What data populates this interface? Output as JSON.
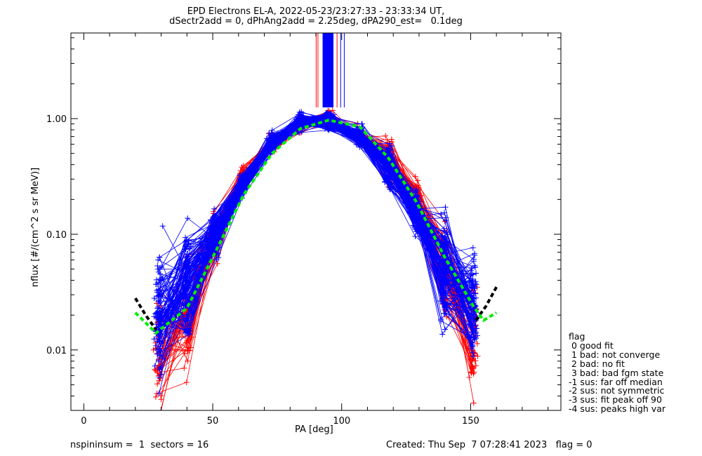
{
  "title": {
    "line1": "EPD Electrons EL-A, 2022-05-23/23:27:33 - 23:33:34 UT,",
    "line2": "dSectr2add = 0, dPhAng2add = 2.25deg, dPA290_est=   0.1deg"
  },
  "footer": {
    "left": "nspininsum =  1  sectors = 16",
    "right": "Created: Thu Sep  7 07:28:41 2023   flag = 0"
  },
  "legend": {
    "title": "flag",
    "items": [
      " 0 good fit",
      " 1 bad: not converge",
      " 2 bad: no fit",
      " 3 bad: bad fgm state",
      "-1 sus: far off median",
      "-2 sus: not symmetric",
      "-3 sus: fit peak off 90",
      "-4 sus: peaks high var"
    ]
  },
  "chart_data": {
    "type": "line",
    "xlabel": "PA [deg]",
    "ylabel": "nflux [#/(cm^2 s sr MeV)]",
    "xlim": [
      -5,
      185
    ],
    "ylim": [
      0.003,
      5.5
    ],
    "yscale": "log",
    "xticks": [
      0,
      50,
      100,
      150
    ],
    "xtick_labels": [
      "0",
      "50",
      "100",
      "150"
    ],
    "yticks": [
      0.01,
      0.1,
      1.0
    ],
    "ytick_labels": [
      "0.01",
      "0.10",
      "1.00"
    ],
    "series": [
      {
        "style": "red lines with + markers",
        "color": "#ff0000",
        "x": [
          29,
          40,
          51,
          62,
          73,
          84,
          95,
          107,
          118,
          129,
          140,
          151
        ],
        "values": [
          0.009,
          0.02,
          0.09,
          0.32,
          0.6,
          0.9,
          0.95,
          0.7,
          0.45,
          0.2,
          0.05,
          0.012
        ]
      },
      {
        "style": "blue lines with + markers",
        "color": "#0000ff",
        "x": [
          29,
          40,
          51,
          62,
          73,
          84,
          95,
          107,
          118,
          129,
          140,
          151
        ],
        "values": [
          0.02,
          0.035,
          0.1,
          0.27,
          0.62,
          0.93,
          0.95,
          0.7,
          0.38,
          0.15,
          0.05,
          0.025
        ]
      },
      {
        "style": "green dashed fit",
        "color": "#00ee00",
        "x": [
          20,
          28,
          40,
          51,
          62,
          73,
          84,
          95,
          107,
          118,
          129,
          140,
          151,
          155,
          160
        ],
        "values": [
          0.021,
          0.014,
          0.023,
          0.07,
          0.22,
          0.5,
          0.82,
          0.97,
          0.85,
          0.46,
          0.19,
          0.063,
          0.024,
          0.018,
          0.021
        ]
      },
      {
        "style": "black dashed fit extension",
        "color": "#000000",
        "x": [
          20,
          24,
          28,
          152,
          156,
          160
        ],
        "values": [
          0.028,
          0.02,
          0.015,
          0.018,
          0.024,
          0.035
        ]
      }
    ]
  }
}
